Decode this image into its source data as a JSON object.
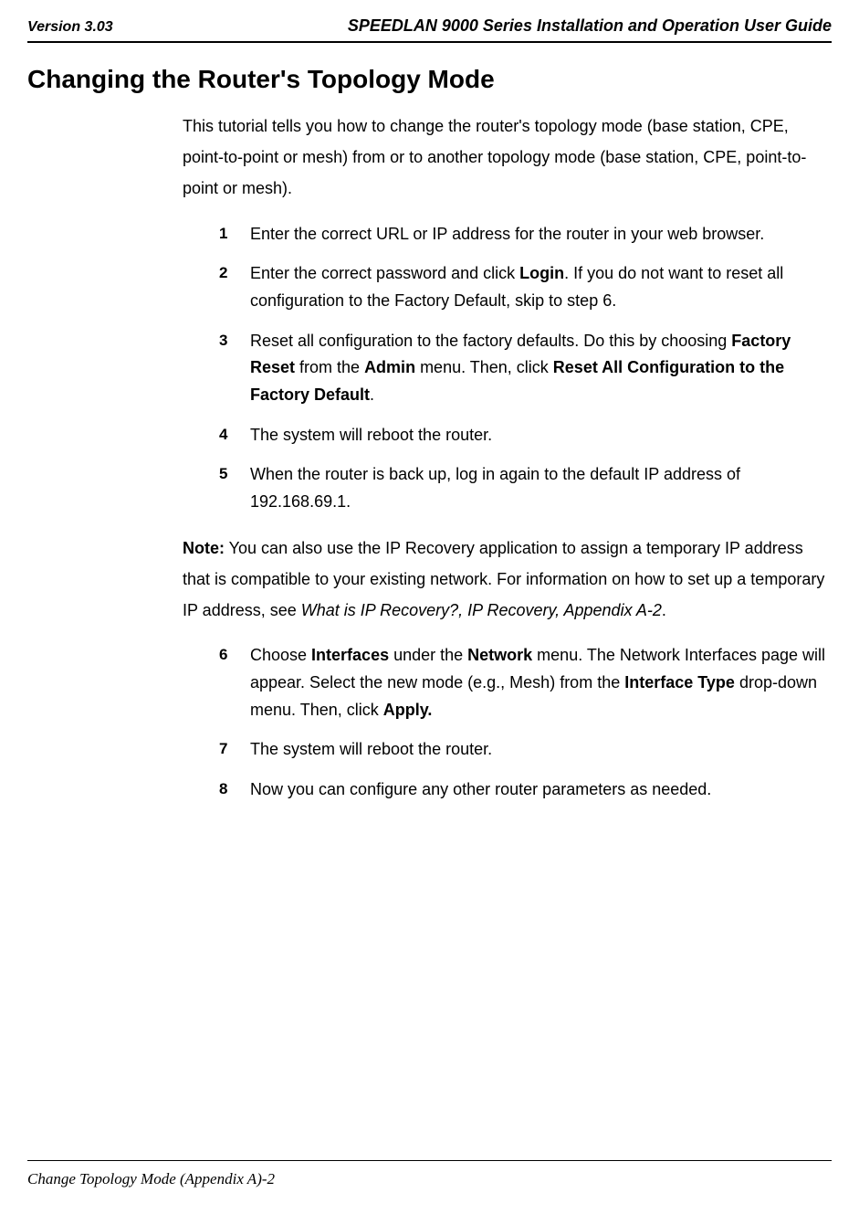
{
  "header": {
    "version": "Version 3.03",
    "guide_title": "SPEEDLAN 9000 Series Installation and Operation User Guide"
  },
  "section": {
    "title": "Changing the Router's Topology Mode",
    "intro": "This tutorial tells you how to change the router's topology mode (base station, CPE, point-to-point or mesh) from or to another topology mode (base station, CPE, point-to-point or mesh).",
    "steps_group1": [
      {
        "num": "1",
        "text": "Enter the correct URL or IP address for the router in your web browser."
      },
      {
        "num": "2",
        "pre": "Enter the correct password and click ",
        "b1": "Login",
        "post": ". If you do not want to reset all configuration to the Factory Default, skip to step 6."
      },
      {
        "num": "3",
        "pre": "Reset all configuration to the factory defaults. Do this by choosing ",
        "b1": "Factory Reset",
        "mid1": " from the ",
        "b2": "Admin",
        "mid2": " menu. Then, click ",
        "b3": "Reset All Configuration to the Factory Default",
        "post": "."
      },
      {
        "num": "4",
        "text": "The system will reboot the router."
      },
      {
        "num": "5",
        "text": "When the router is back up, log in again to the default IP address of 192.168.69.1."
      }
    ],
    "note": {
      "label": "Note:",
      "text": " You can also use the IP Recovery application to assign a temporary IP address that is compatible to your existing network. For information on how to set up a temporary IP address, see ",
      "italic": "What is IP Recovery?, IP Recovery, Appendix A-2",
      "post": "."
    },
    "steps_group2": [
      {
        "num": "6",
        "pre": "Choose ",
        "b1": "Interfaces",
        "mid1": " under the ",
        "b2": "Network",
        "mid2": " menu. The Network Interfaces page will appear. Select the new mode (e.g., Mesh) from the ",
        "b3": "Interface Type",
        "mid3": " drop-down menu. Then, click ",
        "b4": "Apply.",
        "post": ""
      },
      {
        "num": "7",
        "text": "The system will reboot the router."
      },
      {
        "num": "8",
        "text": "Now you can configure any other router parameters as needed."
      }
    ]
  },
  "footer": {
    "text": "Change Topology Mode (Appendix A)-2"
  }
}
